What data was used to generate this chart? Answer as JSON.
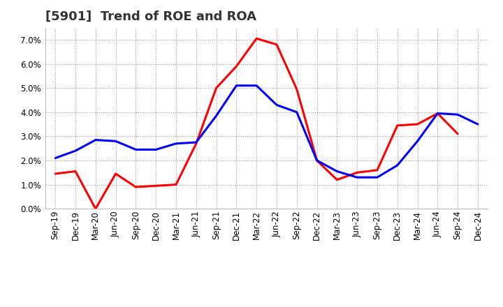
{
  "title": "[5901]  Trend of ROE and ROA",
  "x_labels": [
    "Sep-19",
    "Dec-19",
    "Mar-20",
    "Jun-20",
    "Sep-20",
    "Dec-20",
    "Mar-21",
    "Jun-21",
    "Sep-21",
    "Dec-21",
    "Mar-22",
    "Jun-22",
    "Sep-22",
    "Dec-22",
    "Mar-23",
    "Jun-23",
    "Sep-23",
    "Dec-23",
    "Mar-24",
    "Jun-24",
    "Sep-24",
    "Dec-24"
  ],
  "roe": [
    1.45,
    1.55,
    0.0,
    1.45,
    0.9,
    0.95,
    1.0,
    2.7,
    5.0,
    5.9,
    7.05,
    6.8,
    4.95,
    2.0,
    1.2,
    1.5,
    1.6,
    3.45,
    3.5,
    3.95,
    3.1,
    null
  ],
  "roa": [
    2.1,
    2.4,
    2.85,
    2.8,
    2.45,
    2.45,
    2.7,
    2.75,
    3.85,
    5.1,
    5.1,
    4.3,
    4.0,
    2.0,
    1.55,
    1.3,
    1.3,
    1.8,
    2.8,
    3.95,
    3.9,
    3.5
  ],
  "roe_color": "#ff0000",
  "roa_color": "#0000ff",
  "ylim": [
    0.0,
    7.5
  ],
  "yticks": [
    0.0,
    1.0,
    2.0,
    3.0,
    4.0,
    5.0,
    6.0,
    7.0
  ],
  "background_color": "#ffffff",
  "plot_bg_color": "#ffffff",
  "grid_color": "#999999",
  "title_fontsize": 13,
  "axis_fontsize": 8.5,
  "legend_fontsize": 10,
  "line_width": 2.2
}
